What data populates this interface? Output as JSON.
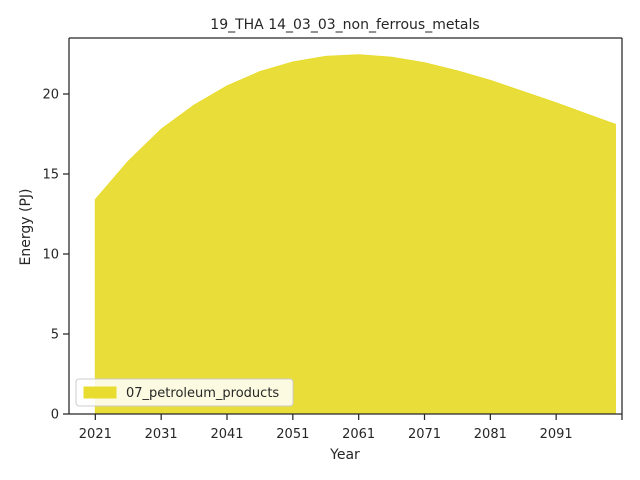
{
  "chart_data": {
    "type": "area",
    "title": "19_THA 14_03_03_non_ferrous_metals",
    "xlabel": "Year",
    "ylabel": "Energy (PJ)",
    "xlim": [
      2017,
      2101
    ],
    "ylim": [
      0,
      23.5
    ],
    "grid": false,
    "legend_position": "lower-left",
    "x_ticks": [
      2021,
      2031,
      2041,
      2051,
      2061,
      2071,
      2081,
      2091,
      2101
    ],
    "x_tick_labels": [
      "2021",
      "2031",
      "2041",
      "2051",
      "2061",
      "2071",
      "2081",
      "2091",
      ""
    ],
    "y_ticks": [
      0,
      5,
      10,
      15,
      20
    ],
    "y_tick_labels": [
      "0",
      "5",
      "10",
      "15",
      "20"
    ],
    "series": [
      {
        "name": "07_petroleum_products",
        "color": "#e8dc2e",
        "x": [
          2021,
          2026,
          2031,
          2036,
          2041,
          2046,
          2051,
          2056,
          2061,
          2066,
          2071,
          2076,
          2081,
          2086,
          2091,
          2096,
          2100
        ],
        "values": [
          13.4,
          15.8,
          17.8,
          19.3,
          20.5,
          21.4,
          22.0,
          22.35,
          22.45,
          22.3,
          21.95,
          21.45,
          20.85,
          20.15,
          19.45,
          18.7,
          18.1
        ]
      }
    ]
  }
}
